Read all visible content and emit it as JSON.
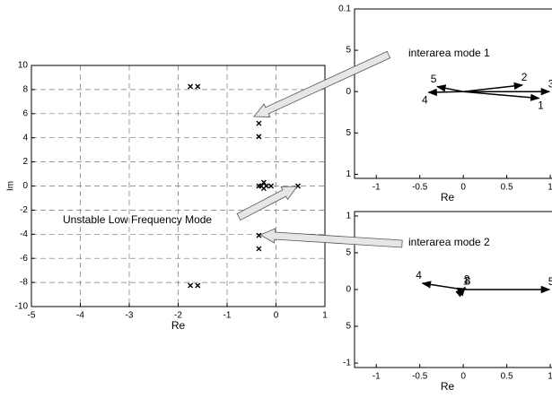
{
  "chart_data": [
    {
      "type": "scatter",
      "xlabel": "Re",
      "ylabel": "Im",
      "x": [
        -1.75,
        -1.6,
        -0.35,
        -0.35,
        -0.35,
        -0.3,
        -0.25,
        -0.2,
        -0.25,
        -0.1,
        0.45,
        -0.35,
        -0.35,
        -1.75,
        -1.6
      ],
      "y": [
        8.25,
        8.25,
        5.2,
        4.1,
        0,
        0,
        0.3,
        0,
        -0.2,
        0,
        0,
        -4.1,
        -5.2,
        -8.25,
        -8.25
      ],
      "xlim": [
        -5,
        1
      ],
      "ylim": [
        -10,
        10
      ],
      "xticks": [
        -5,
        -4,
        -3,
        -2,
        -1,
        0,
        1
      ],
      "yticks": [
        -10,
        -8,
        -6,
        -4,
        -2,
        0,
        2,
        4,
        6,
        8,
        10
      ],
      "grid": true,
      "color": "#000000"
    },
    {
      "type": "compass",
      "xlabel": "Re",
      "vectors": [
        {
          "label": "1",
          "re": 0.87,
          "im": -0.008
        },
        {
          "label": "2",
          "re": 0.68,
          "im": 0.008
        },
        {
          "label": "3",
          "re": 0.99,
          "im": 0
        },
        {
          "label": "4",
          "re": -0.4,
          "im": -0.001
        },
        {
          "label": "5",
          "re": -0.3,
          "im": 0.006
        }
      ],
      "xlim": [
        -1.25,
        1.03
      ],
      "ylim": [
        -0.105,
        0.1
      ],
      "xticks": [
        -1,
        -0.5,
        0,
        0.5,
        1
      ],
      "yticks": [
        {
          "value": -0.1,
          "label": "1"
        },
        {
          "value": -0.05,
          "label": "5"
        },
        0,
        {
          "value": 0.05,
          "label": "5"
        },
        {
          "value": 0.1,
          "label": "0.1"
        }
      ],
      "color": "#000000"
    },
    {
      "type": "compass",
      "xlabel": "Re",
      "vectors": [
        {
          "label": "1",
          "re": 0.01,
          "im": 0.01
        },
        {
          "label": "2",
          "re": 0.02,
          "im": 0.03
        },
        {
          "label": "3",
          "re": 0.03,
          "im": 0.01
        },
        {
          "label": "4",
          "re": -0.47,
          "im": 0.085
        },
        {
          "label": "5",
          "re": 0.99,
          "im": 0
        }
      ],
      "xlim": [
        -1.25,
        1.03
      ],
      "ylim": [
        -1.06,
        1.06
      ],
      "xticks": [
        -1,
        -0.5,
        0,
        0.5,
        1
      ],
      "yticks": [
        -1,
        {
          "value": -0.5,
          "label": "5"
        },
        0,
        {
          "value": 0.5,
          "label": "5"
        },
        1
      ],
      "color": "#000000"
    }
  ],
  "annotations": [
    "interarea mode 1",
    "Unstable Low Frequency Mode",
    "interarea mode 2"
  ]
}
